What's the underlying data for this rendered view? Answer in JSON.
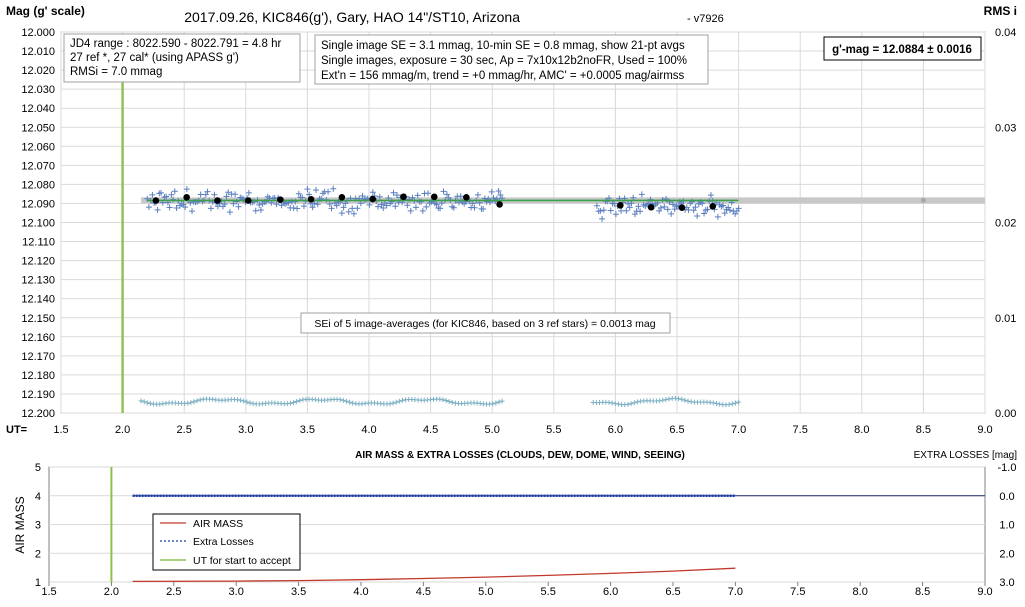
{
  "chart_data": [
    {
      "type": "scatter",
      "title": "2017.09.26,  KIC846(g'),  Gary,  HAO  14\"/ST10,  Arizona",
      "version": "- v7926",
      "ylabel": "Mag (g' scale)",
      "y2label": "RMS i",
      "xlabel": "UT=",
      "xlim": [
        1.5,
        9.0
      ],
      "ylim": [
        12.0,
        12.2
      ],
      "y_inverted": true,
      "y2lim": [
        0.0,
        0.04
      ],
      "x_ticks": [
        "1.5",
        "2.0",
        "2.5",
        "3.0",
        "3.5",
        "4.0",
        "4.5",
        "5.0",
        "5.5",
        "6.0",
        "6.5",
        "7.0",
        "7.5",
        "8.0",
        "8.5",
        "9.0"
      ],
      "y_ticks": [
        "12.000",
        "12.010",
        "12.020",
        "12.030",
        "12.040",
        "12.050",
        "12.060",
        "12.070",
        "12.080",
        "12.090",
        "12.100",
        "12.110",
        "12.120",
        "12.130",
        "12.140",
        "12.150",
        "12.160",
        "12.170",
        "12.180",
        "12.190",
        "12.200"
      ],
      "y2_ticks": [
        "0.04",
        "0.03",
        "0.02",
        "0.01",
        "0.00"
      ],
      "grid": true,
      "start_ut": 2.0,
      "mean_mag": 12.0884,
      "info_box_1": [
        "JD4 range : 8022.590 - 8022.791 =  4.8  hr",
        "27 ref *, 27 cal* (using APASS g')",
        "RMSi = 7.0 mmag"
      ],
      "info_box_2": [
        "Single image SE = 3.1 mmag, 10-min SE = 0.8 mmag, show 21-pt avgs",
        "Single images, exposure = 30 sec, Ap = 7x10x12b2noFR, Used = 100%",
        "Ext'n = 156 mmag/m, trend =  +0 mmag/hr, AMC' = +0.0005 mag/airmss"
      ],
      "result_box": "g'-mag = 12.0884 ± 0.0016",
      "sei_box": "SEi of 5 image-averages (for KIC846, based on 3 ref stars) = 0.0013 mag",
      "series": [
        {
          "name": "21-pt averages",
          "x": [
            2.27,
            2.52,
            2.77,
            3.02,
            3.28,
            3.53,
            3.78,
            4.03,
            4.28,
            4.53,
            4.79,
            5.06,
            6.04,
            6.29,
            6.54,
            6.79
          ],
          "y": [
            12.0885,
            12.0868,
            12.0885,
            12.0885,
            12.088,
            12.0878,
            12.0868,
            12.0877,
            12.0865,
            12.0865,
            12.0868,
            12.0905,
            12.091,
            12.092,
            12.0922,
            12.0915
          ]
        },
        {
          "name": "single images",
          "segments": [
            [
              2.2,
              5.08
            ],
            [
              5.85,
              7.0
            ]
          ],
          "mean": 12.0884,
          "scatter": 0.004
        },
        {
          "name": "RMS i",
          "segments": [
            [
              2.15,
              5.08
            ],
            [
              5.82,
              7.0
            ]
          ],
          "level_mag": 12.194
        }
      ]
    },
    {
      "type": "line",
      "title": "AIR MASS & EXTRA LOSSES (CLOUDS, DEW, DOME, WIND, SEEING)",
      "ylabel": "AIR MASS",
      "y2label": "EXTRA LOSSES [mag]",
      "xlim": [
        1.5,
        9.0
      ],
      "ylim": [
        1,
        5
      ],
      "y2lim": [
        -1.0,
        3.0
      ],
      "x_ticks": [
        "1.5",
        "2.0",
        "2.5",
        "3.0",
        "3.5",
        "4.0",
        "4.5",
        "5.0",
        "5.5",
        "6.0",
        "6.5",
        "7.0",
        "7.5",
        "8.0",
        "8.5",
        "9.0"
      ],
      "y_ticks": [
        "5",
        "4",
        "3",
        "2",
        "1"
      ],
      "y2_ticks": [
        "-1.0",
        "0.0",
        "1.0",
        "2.0",
        "3.0"
      ],
      "legend": [
        "AIR MASS",
        "Extra Losses",
        "UT for start to accept"
      ],
      "series": [
        {
          "name": "AIR MASS",
          "x": [
            2.17,
            3.0,
            3.5,
            4.0,
            4.5,
            5.0,
            5.5,
            6.0,
            6.5,
            7.0
          ],
          "y": [
            1.02,
            1.03,
            1.05,
            1.08,
            1.12,
            1.17,
            1.23,
            1.3,
            1.38,
            1.48
          ]
        },
        {
          "name": "Extra Losses",
          "x": [
            2.17,
            7.0
          ],
          "y": [
            0.0,
            0.0
          ]
        },
        {
          "name": "UT for start to accept",
          "x": [
            2.0,
            2.0
          ],
          "y": [
            1,
            5
          ]
        }
      ]
    }
  ],
  "colors": {
    "avg_points": "#000000",
    "single_points": "#5b7fc0",
    "rms_points": "#7fb1c4",
    "mean_band": "#c8c8c8",
    "mean_line": "#3aa04a",
    "ut_start": "#8cc152",
    "airmass": "#c0392b",
    "extra_losses": "#1f3fa8"
  }
}
